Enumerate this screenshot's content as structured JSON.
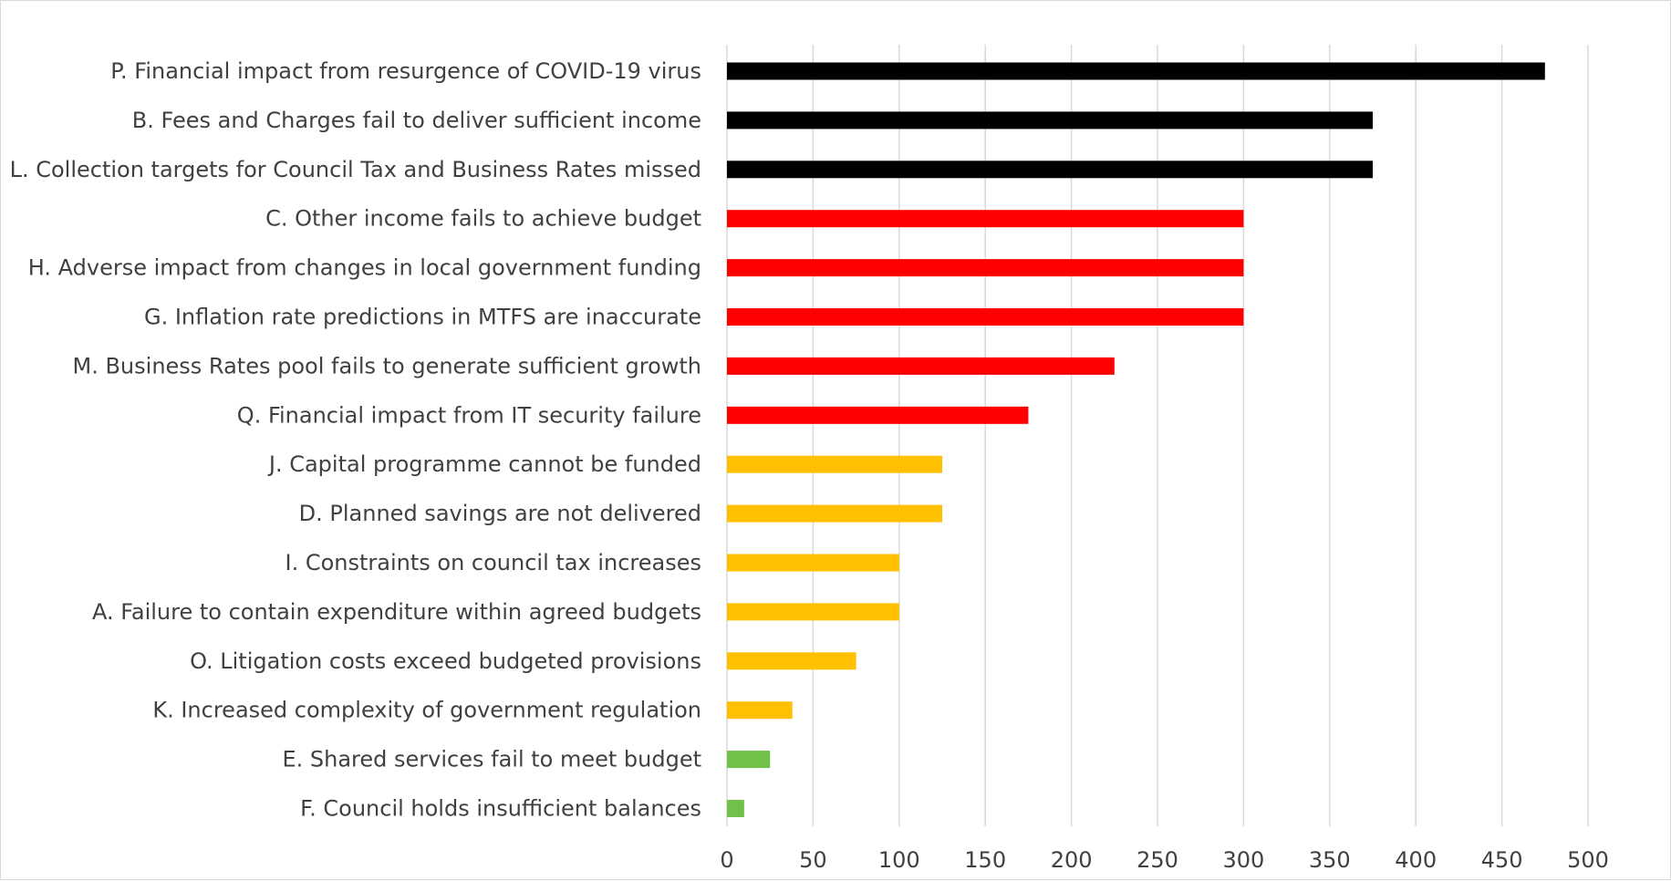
{
  "chart_data": {
    "type": "bar",
    "orientation": "horizontal",
    "categories": [
      "P. Financial impact from resurgence of COVID-19 virus",
      "B. Fees and Charges fail to deliver sufficient income",
      "L. Collection targets for Council Tax and Business Rates missed",
      "C. Other income fails to achieve budget",
      "H. Adverse impact from changes in local government funding",
      "G. Inflation rate predictions in MTFS are inaccurate",
      "M. Business Rates pool fails to generate sufficient growth",
      "Q. Financial impact from IT security failure",
      "J. Capital programme cannot be funded",
      "D. Planned savings are not delivered",
      "I. Constraints on council tax increases",
      "A. Failure to contain expenditure within agreed budgets",
      "O. Litigation costs exceed budgeted provisions",
      "K. Increased complexity of government regulation",
      "E. Shared services fail to meet budget",
      "F. Council holds insufficient balances"
    ],
    "values": [
      475,
      375,
      375,
      300,
      300,
      300,
      225,
      175,
      125,
      125,
      100,
      100,
      75,
      38,
      25,
      10
    ],
    "bar_colors": [
      "#000000",
      "#000000",
      "#000000",
      "#ff0000",
      "#ff0000",
      "#ff0000",
      "#ff0000",
      "#ff0000",
      "#ffc000",
      "#ffc000",
      "#ffc000",
      "#ffc000",
      "#ffc000",
      "#ffc000",
      "#70c04a",
      "#70c04a"
    ],
    "xlim": [
      0,
      500
    ],
    "xticks": [
      "0",
      "50",
      "100",
      "150",
      "200",
      "250",
      "300",
      "350",
      "400",
      "450",
      "500"
    ],
    "grid": "vertical",
    "legend": "none",
    "title": "",
    "xlabel": "",
    "ylabel": ""
  }
}
